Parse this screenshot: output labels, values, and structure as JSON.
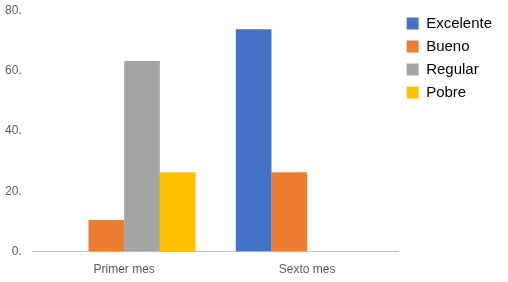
{
  "chart_data": {
    "type": "bar",
    "categories": [
      "Primer mes",
      "Sexto mes"
    ],
    "series": [
      {
        "name": "Excelente",
        "color": "#4472c4",
        "values": [
          0,
          73.7
        ]
      },
      {
        "name": "Bueno",
        "color": "#ed7d31",
        "values": [
          10.5,
          26.3
        ]
      },
      {
        "name": "Regular",
        "color": "#a5a5a5",
        "values": [
          63.2,
          0
        ]
      },
      {
        "name": "Pobre",
        "color": "#ffc000",
        "values": [
          26.3,
          0
        ]
      }
    ],
    "ylim": [
      0,
      80
    ],
    "yticks": [
      {
        "value": 0,
        "label": "0."
      },
      {
        "value": 20,
        "label": "20."
      },
      {
        "value": 40,
        "label": "40."
      },
      {
        "value": 60,
        "label": "60."
      },
      {
        "value": 80,
        "label": "80."
      }
    ],
    "grid": false,
    "legend": "right"
  }
}
